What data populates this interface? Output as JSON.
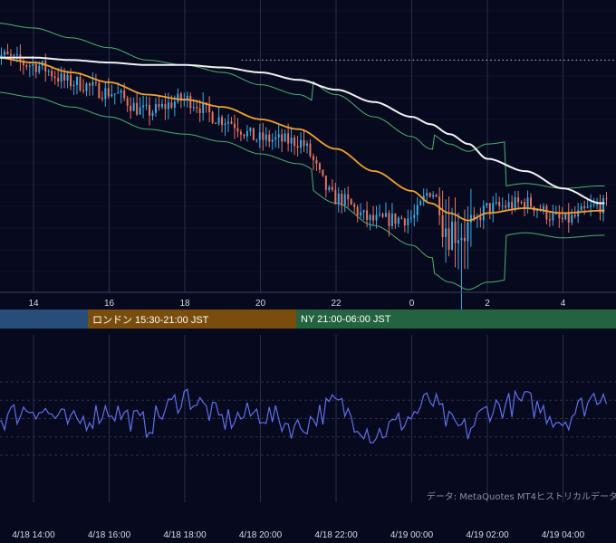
{
  "colors": {
    "background": "#070a1e",
    "grid": "#2a2f4a",
    "candle_up": "#3aa9e4",
    "candle_down": "#e8735e",
    "moving_average": "#f0a030",
    "long_moving_average": "#f2f2f2",
    "bollinger_band": "#4caf6e",
    "oscillator": "#5f6ee8",
    "session_tokyo": "#284d7a",
    "session_london": "#7a4d0d",
    "session_ny": "#24633f"
  },
  "top_axis_hours": [
    "14",
    "16",
    "18",
    "20",
    "22",
    "0",
    "2",
    "4"
  ],
  "sessions": {
    "london": "ロンドン 15:30-21:00 JST",
    "ny": "NY 21:00-06:00 JST"
  },
  "bottom_axis_dates": [
    "4/18 14:00",
    "4/18 16:00",
    "4/18 18:00",
    "4/18 20:00",
    "4/18 22:00",
    "4/19 00:00",
    "4/19 02:00",
    "4/19 04:00"
  ],
  "credit": "データ: MetaQuotes MT4ヒストリカルデータ",
  "chart_data": [
    {
      "type": "candlestick",
      "description_units": "relative price (axis values not shown)",
      "x": [
        "4/18 13:00",
        "4/18 14:00",
        "4/18 15:00",
        "4/18 16:00",
        "4/18 17:00",
        "4/18 18:00",
        "4/18 19:00",
        "4/18 20:00",
        "4/18 21:00",
        "4/18 22:00",
        "4/18 23:00",
        "4/19 00:00",
        "4/19 00:30",
        "4/19 01:00",
        "4/19 01:30",
        "4/19 02:00",
        "4/19 03:00",
        "4/19 04:00",
        "4/19 05:00"
      ],
      "close": [
        100.0,
        99.6,
        98.9,
        98.5,
        97.7,
        98.2,
        97.4,
        96.6,
        96.5,
        94.2,
        93.3,
        93.4,
        94.5,
        93.0,
        92.9,
        93.8,
        94.0,
        93.3,
        93.9
      ],
      "moving_average": [
        99.9,
        99.7,
        99.3,
        98.9,
        98.4,
        98.2,
        97.9,
        97.4,
        97.0,
        96.2,
        95.3,
        94.5,
        94.0,
        93.6,
        93.3,
        93.6,
        93.8,
        93.6,
        93.7
      ],
      "long_moving_average": [
        99.9,
        99.9,
        99.8,
        99.7,
        99.6,
        99.6,
        99.5,
        99.3,
        99.0,
        98.6,
        98.1,
        97.5,
        97.2,
        96.8,
        96.4,
        95.8,
        95.3,
        94.6,
        94.0
      ],
      "reference_level": 99.8,
      "grid": true
    },
    {
      "type": "line",
      "description": "oscillator sub-panel",
      "x": [
        "4/18 13:00",
        "4/18 14:00",
        "4/18 15:00",
        "4/18 16:00",
        "4/18 17:00",
        "4/18 18:00",
        "4/18 19:00",
        "4/18 20:00",
        "4/18 21:00",
        "4/18 22:00",
        "4/18 23:00",
        "4/19 00:00",
        "4/19 00:30",
        "4/19 01:00",
        "4/19 01:30",
        "4/19 02:00",
        "4/19 03:00",
        "4/19 04:00",
        "4/19 05:00"
      ],
      "values": [
        48,
        60,
        45,
        58,
        44,
        70,
        48,
        55,
        42,
        63,
        36,
        52,
        66,
        45,
        40,
        58,
        64,
        48,
        72
      ],
      "ylim": [
        0,
        100
      ],
      "grid": true
    }
  ]
}
